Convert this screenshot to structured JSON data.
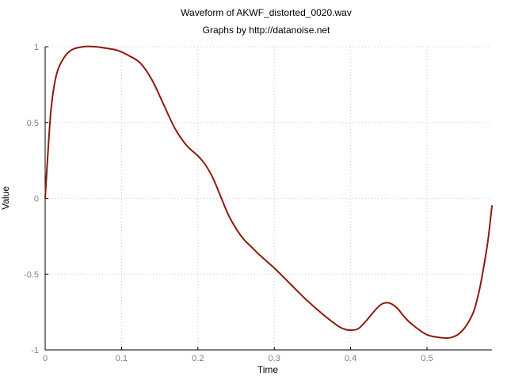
{
  "chart_data": {
    "type": "line",
    "title": "Waveform of AKWF_distorted_0020.wav",
    "subtitle": "Graphs by http://datanoise.net",
    "xlabel": "Time",
    "ylabel": "Value",
    "xlim": [
      0,
      0.585
    ],
    "ylim": [
      -1,
      1
    ],
    "xticks": [
      0,
      0.1,
      0.2,
      0.3,
      0.4,
      0.5
    ],
    "xtick_labels": [
      "0",
      "0.1",
      "0.2",
      "0.3",
      "0.4",
      "0.5"
    ],
    "yticks": [
      -1,
      -0.5,
      0,
      0.5,
      1
    ],
    "ytick_labels": [
      "-1",
      "-0.5",
      "0",
      "0.5",
      "1"
    ],
    "grid": true,
    "line_color": "#8b1a0e",
    "series": [
      {
        "x": [
          0,
          0.003,
          0.008,
          0.015,
          0.025,
          0.035,
          0.05,
          0.065,
          0.08,
          0.095,
          0.11,
          0.125,
          0.14,
          0.155,
          0.17,
          0.185,
          0.2,
          0.21,
          0.22,
          0.23,
          0.24,
          0.25,
          0.26,
          0.27,
          0.28,
          0.3,
          0.32,
          0.34,
          0.36,
          0.38,
          0.39,
          0.4,
          0.41,
          0.42,
          0.43,
          0.44,
          0.45,
          0.46,
          0.47,
          0.48,
          0.5,
          0.52,
          0.53,
          0.54,
          0.55,
          0.56,
          0.565,
          0.57,
          0.575,
          0.58,
          0.585
        ],
        "y": [
          0.0,
          0.25,
          0.6,
          0.82,
          0.93,
          0.98,
          1.0,
          1.0,
          0.99,
          0.975,
          0.94,
          0.89,
          0.78,
          0.62,
          0.46,
          0.35,
          0.28,
          0.22,
          0.13,
          0.01,
          -0.11,
          -0.2,
          -0.27,
          -0.32,
          -0.37,
          -0.46,
          -0.56,
          -0.66,
          -0.75,
          -0.83,
          -0.86,
          -0.87,
          -0.86,
          -0.81,
          -0.75,
          -0.7,
          -0.69,
          -0.72,
          -0.78,
          -0.83,
          -0.9,
          -0.92,
          -0.92,
          -0.9,
          -0.85,
          -0.76,
          -0.68,
          -0.57,
          -0.43,
          -0.27,
          -0.05
        ]
      }
    ]
  }
}
